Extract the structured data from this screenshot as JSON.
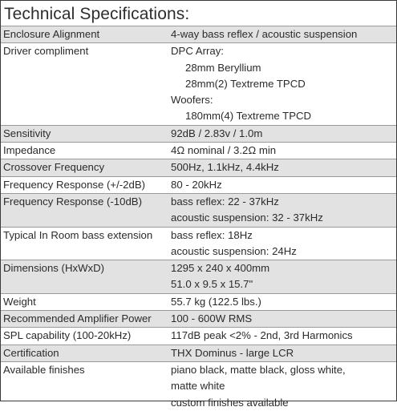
{
  "title": "Technical Specifications:",
  "rows": [
    {
      "label": "Enclosure Alignment",
      "shaded": true,
      "lines": [
        {
          "text": "4-way bass reflex / acoustic suspension",
          "indent": false
        }
      ]
    },
    {
      "label": "Driver compliment",
      "shaded": false,
      "lines": [
        {
          "text": "DPC Array:",
          "indent": false
        },
        {
          "text": "28mm Beryllium",
          "indent": true
        },
        {
          "text": "28mm(2) Textreme TPCD",
          "indent": true
        },
        {
          "text": "Woofers:",
          "indent": false
        },
        {
          "text": "180mm(4) Textreme TPCD",
          "indent": true
        }
      ]
    },
    {
      "label": "Sensitivity",
      "shaded": true,
      "lines": [
        {
          "text": "92dB / 2.83v / 1.0m",
          "indent": false
        }
      ]
    },
    {
      "label": "Impedance",
      "shaded": false,
      "lines": [
        {
          "text": "4Ω nominal / 3.2Ω min",
          "indent": false
        }
      ]
    },
    {
      "label": "Crossover Frequency",
      "shaded": true,
      "lines": [
        {
          "text": "500Hz, 1.1kHz, 4.4kHz",
          "indent": false
        }
      ]
    },
    {
      "label": "Frequency Response (+/-2dB)",
      "shaded": false,
      "lines": [
        {
          "text": "80 - 20kHz",
          "indent": false
        }
      ]
    },
    {
      "label": "Frequency Response (-10dB)",
      "shaded": true,
      "lines": [
        {
          "text": "bass reflex:  22 - 37kHz",
          "indent": false
        },
        {
          "text": "acoustic suspension:  32 - 37kHz",
          "indent": false
        }
      ]
    },
    {
      "label": "Typical In Room bass extension",
      "shaded": false,
      "lines": [
        {
          "text": "bass reflex: 18Hz",
          "indent": false
        },
        {
          "text": "acoustic suspension: 24Hz",
          "indent": false
        }
      ]
    },
    {
      "label": "Dimensions (HxWxD)",
      "shaded": true,
      "lines": [
        {
          "text": "1295 x 240 x 400mm",
          "indent": false
        },
        {
          "text": "51.0 x 9.5 x 15.7\"",
          "indent": false
        }
      ]
    },
    {
      "label": "Weight",
      "shaded": false,
      "lines": [
        {
          "text": "55.7 kg (122.5 lbs.)",
          "indent": false
        }
      ]
    },
    {
      "label": "Recommended Amplifier Power",
      "shaded": true,
      "lines": [
        {
          "text": "100 - 600W RMS",
          "indent": false
        }
      ]
    },
    {
      "label": "SPL capability (100-20kHz)",
      "shaded": false,
      "lines": [
        {
          "text": "117dB peak <2%  - 2nd, 3rd Harmonics",
          "indent": false
        }
      ]
    },
    {
      "label": "Certification",
      "shaded": true,
      "lines": [
        {
          "text": "THX Dominus  - large LCR",
          "indent": false
        }
      ]
    },
    {
      "label": "Available finishes",
      "shaded": false,
      "lines": [
        {
          "text": "piano black, matte black, gloss white,",
          "indent": false
        },
        {
          "text": "matte white",
          "indent": false
        },
        {
          "text": "custom finishes available",
          "indent": false
        }
      ]
    }
  ]
}
